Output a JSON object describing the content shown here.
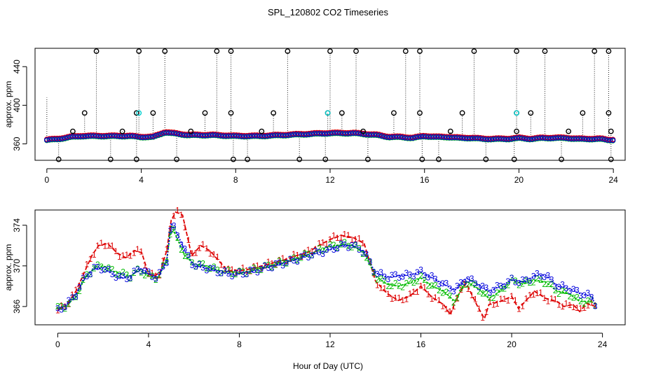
{
  "figure": {
    "title": "SPL_120802  CO2 Timeseries",
    "xlabel": "Hour of Day (UTC)"
  },
  "chart_data": [
    {
      "type": "scatter",
      "panel": "top",
      "xlim": [
        -0.5,
        24.5
      ],
      "ylim": [
        343,
        459
      ],
      "ylabel": "approx. ppm",
      "xticks": [
        0,
        4,
        8,
        12,
        16,
        20,
        24
      ],
      "yticks": [
        360,
        400,
        440
      ],
      "series": [
        {
          "name": "1",
          "color": "#dd0000"
        },
        {
          "name": "2",
          "color": "#00bb00"
        },
        {
          "name": "3",
          "color": "#0000dd"
        }
      ],
      "baseline": {
        "x": [
          0,
          0.5,
          1.0,
          1.5,
          2.0,
          2.5,
          3.0,
          3.5,
          4.0,
          4.5,
          5.0,
          5.3,
          6.0,
          7.0,
          8.0,
          9.0,
          10.0,
          11.0,
          12.0,
          12.5,
          13.0,
          13.5,
          14.0,
          14.5,
          15.0,
          15.5,
          16.0,
          16.5,
          17.0,
          17.5,
          18.0,
          18.5,
          19.0,
          19.5,
          20.0,
          20.5,
          21.0,
          21.5,
          22.0,
          22.5,
          23.0,
          23.5,
          23.8
        ],
        "y": [
          364,
          365,
          367,
          368,
          368,
          368,
          368,
          368,
          367,
          367,
          372,
          371,
          369,
          369,
          368,
          368,
          369,
          370,
          371,
          371,
          371,
          370,
          369,
          367,
          367,
          366,
          368,
          367,
          367,
          366,
          366,
          365,
          365,
          365,
          366,
          365,
          366,
          366,
          366,
          365,
          365,
          365,
          364
        ]
      },
      "outliers_high": [
        2.1,
        3.9,
        5.0,
        7.2,
        7.8,
        10.2,
        12.0,
        13.1,
        15.2,
        15.8,
        18.1,
        19.9,
        21.1,
        23.2,
        23.8
      ],
      "outliers_low": [
        0.5,
        2.7,
        3.8,
        5.5,
        7.9,
        8.5,
        10.7,
        11.8,
        13.6,
        15.9,
        16.6,
        18.6,
        19.8,
        21.8,
        23.9
      ],
      "outliers_mid": [
        1.6,
        3.8,
        4.5,
        6.7,
        7.8,
        9.6,
        11.9,
        12.5,
        14.7,
        15.8,
        17.6,
        19.9,
        20.5,
        22.7,
        23.8
      ],
      "outliers_mid_low": [
        1.1,
        3.2,
        6.1,
        9.1,
        13.4,
        17.1,
        19.9,
        22.1,
        23.9
      ]
    },
    {
      "type": "line",
      "panel": "bottom",
      "xlim": [
        -1,
        25
      ],
      "ylim": [
        364.2,
        375.5
      ],
      "ylabel": "approx. ppm",
      "xticks": [
        0,
        4,
        8,
        12,
        16,
        20,
        24
      ],
      "yticks": [
        366,
        370,
        374
      ],
      "series": [
        {
          "name": "1",
          "color": "#dd0000",
          "x": [
            0,
            0.4,
            0.8,
            1.2,
            1.5,
            1.8,
            2.2,
            2.6,
            3.0,
            3.4,
            3.7,
            4.0,
            4.2,
            4.5,
            4.8,
            5.0,
            5.2,
            5.5,
            5.9,
            6.3,
            6.7,
            7.1,
            7.5,
            7.8,
            8.0,
            8.5,
            9.0,
            9.5,
            10.0,
            10.5,
            11.0,
            11.5,
            12.0,
            12.5,
            13.0,
            13.5,
            14.0,
            14.5,
            15.0,
            15.5,
            16.0,
            16.5,
            17.0,
            17.3,
            17.6,
            18.0,
            18.5,
            18.8,
            19.0,
            19.5,
            20.0,
            20.3,
            20.6,
            21.0,
            21.5,
            22.0,
            22.3,
            22.7,
            23.0,
            23.3,
            23.7
          ],
          "y": [
            365.6,
            366.2,
            367.5,
            369.5,
            371.0,
            372.0,
            372.2,
            371.3,
            370.8,
            371.5,
            371.3,
            369.2,
            369.0,
            369.3,
            371.5,
            374.5,
            375.3,
            375.0,
            371.0,
            372.0,
            371.5,
            370.5,
            369.5,
            369.6,
            369.5,
            369.7,
            370.0,
            370.3,
            370.6,
            371.0,
            371.3,
            372.0,
            372.6,
            373.0,
            372.8,
            372.2,
            368.5,
            367.3,
            366.6,
            367.0,
            368.0,
            366.9,
            366.2,
            365.2,
            367.0,
            368.3,
            366.0,
            364.8,
            366.2,
            366.5,
            367.0,
            365.8,
            366.5,
            367.5,
            366.8,
            366.5,
            366.0,
            366.2,
            365.5,
            366.3,
            366.0
          ]
        },
        {
          "name": "2",
          "color": "#00bb00",
          "x": [
            0,
            0.4,
            0.8,
            1.2,
            1.6,
            2.0,
            2.4,
            2.8,
            3.2,
            3.6,
            4.0,
            4.4,
            4.8,
            5.0,
            5.3,
            5.6,
            6.0,
            6.5,
            7.0,
            7.5,
            8.0,
            8.5,
            9.0,
            9.5,
            10.0,
            10.5,
            11.0,
            11.5,
            12.0,
            12.5,
            13.0,
            13.5,
            14.0,
            14.5,
            15.0,
            15.5,
            16.0,
            16.5,
            17.0,
            17.5,
            18.0,
            18.5,
            19.0,
            19.5,
            20.0,
            20.5,
            21.0,
            21.5,
            22.0,
            22.5,
            23.0,
            23.5,
            23.7
          ],
          "y": [
            365.8,
            366.1,
            367.0,
            368.8,
            369.8,
            370.0,
            369.5,
            369.2,
            369.0,
            369.6,
            369.0,
            368.8,
            370.5,
            374.0,
            372.5,
            371.0,
            370.2,
            370.0,
            369.6,
            369.4,
            369.3,
            369.5,
            369.8,
            370.1,
            370.4,
            370.7,
            371.1,
            371.5,
            371.9,
            372.1,
            372.0,
            371.3,
            369.0,
            368.2,
            368.0,
            368.3,
            368.8,
            368.0,
            367.5,
            366.5,
            368.5,
            367.8,
            366.8,
            367.5,
            368.6,
            368.2,
            368.6,
            368.4,
            367.5,
            367.3,
            366.5,
            366.5,
            366.2
          ]
        },
        {
          "name": "3",
          "color": "#0000dd",
          "x": [
            0,
            0.4,
            0.8,
            1.2,
            1.6,
            2.0,
            2.4,
            2.8,
            3.2,
            3.6,
            4.0,
            4.4,
            4.8,
            5.0,
            5.3,
            5.6,
            6.0,
            6.5,
            7.0,
            7.5,
            8.0,
            8.5,
            9.0,
            9.5,
            10.0,
            10.5,
            11.0,
            11.5,
            12.0,
            12.5,
            13.0,
            13.5,
            14.0,
            14.5,
            15.0,
            15.5,
            16.0,
            16.5,
            17.0,
            17.5,
            18.0,
            18.5,
            19.0,
            19.5,
            20.0,
            20.5,
            21.0,
            21.5,
            22.0,
            22.5,
            23.0,
            23.5,
            23.7
          ],
          "y": [
            365.6,
            366.2,
            367.2,
            368.9,
            369.7,
            369.8,
            369.2,
            368.8,
            368.9,
            369.8,
            369.2,
            368.8,
            370.5,
            374.2,
            373.0,
            371.5,
            370.0,
            369.8,
            369.5,
            369.2,
            369.2,
            369.4,
            369.7,
            370.0,
            370.3,
            370.6,
            371.0,
            371.3,
            371.6,
            372.0,
            372.0,
            371.4,
            369.3,
            368.9,
            369.0,
            369.1,
            369.4,
            368.8,
            368.2,
            367.6,
            368.8,
            368.2,
            367.5,
            368.0,
            368.6,
            368.4,
            369.0,
            369.1,
            368.0,
            367.8,
            367.3,
            367.0,
            366.2
          ]
        }
      ]
    }
  ]
}
